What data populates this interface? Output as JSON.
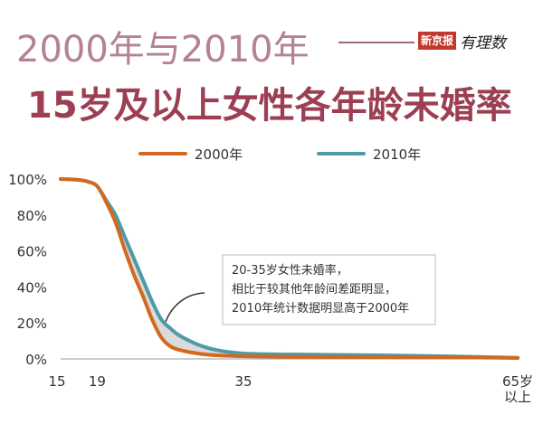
{
  "header": {
    "title_line1": "2000年与2010年",
    "title_line2": "15岁及以上女性各年龄未婚率",
    "logo_badge": "新京报",
    "logo_script": "有理数"
  },
  "colors": {
    "series_2000": "#d2691e",
    "series_2010": "#4f9aa6",
    "gap_fill": "#cfcfcf",
    "axis_text": "#333333",
    "grid": "#dddddd"
  },
  "chart_data": {
    "type": "line",
    "title": "15岁及以上女性各年龄未婚率",
    "xlim": [
      15,
      65
    ],
    "ylim": [
      0,
      100
    ],
    "y_ticks": [
      "0%",
      "20%",
      "40%",
      "60%",
      "80%",
      "100%"
    ],
    "x_ticks": [
      "15",
      "19",
      "35",
      "65岁\n以上"
    ],
    "legend_position": "top",
    "series": [
      {
        "name": "2000年",
        "x": [
          15,
          17,
          18,
          19,
          20,
          21,
          22,
          23,
          24,
          25,
          26,
          27,
          28,
          30,
          32,
          35,
          40,
          50,
          60,
          65
        ],
        "y": [
          100,
          99.5,
          98.5,
          96,
          87,
          76,
          61,
          47,
          35,
          22,
          12,
          7,
          5,
          3,
          2,
          1.5,
          1.2,
          1,
          0.8,
          0.5
        ]
      },
      {
        "name": "2010年",
        "x": [
          15,
          17,
          18,
          19,
          20,
          21,
          22,
          23,
          24,
          25,
          26,
          27,
          28,
          30,
          32,
          35,
          40,
          50,
          60,
          65
        ],
        "y": [
          100,
          99.5,
          98.5,
          96,
          88,
          80,
          68,
          56,
          44,
          32,
          22,
          17,
          13,
          8,
          5,
          3,
          2.5,
          2,
          1.2,
          0.6
        ]
      }
    ],
    "annotation": {
      "lines": [
        "20-35岁女性未婚率，",
        "相比于较其他年龄间差距明显，",
        "2010年统计数据明显高于2000年"
      ]
    }
  }
}
